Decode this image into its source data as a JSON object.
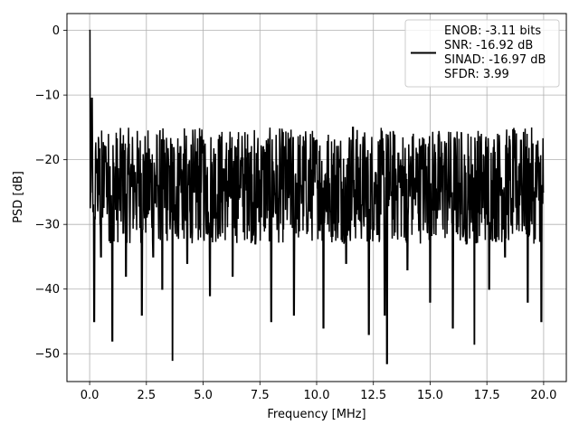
{
  "chart_data": {
    "type": "line",
    "xlabel": "Frequency [MHz]",
    "ylabel": "PSD [dB]",
    "xlim": [
      -1.0,
      21.0
    ],
    "ylim": [
      -54.3,
      2.6
    ],
    "xticks": [
      0.0,
      2.5,
      5.0,
      7.5,
      10.0,
      12.5,
      15.0,
      17.5,
      20.0
    ],
    "xtick_labels": [
      "0.0",
      "2.5",
      "5.0",
      "7.5",
      "10.0",
      "12.5",
      "15.0",
      "17.5",
      "20.0"
    ],
    "yticks": [
      0,
      -10,
      -20,
      -30,
      -40,
      -50
    ],
    "ytick_labels": [
      "0",
      "−10",
      "−20",
      "−30",
      "−40",
      "−50"
    ],
    "grid": true,
    "legend_position": "upper right",
    "legend_lines": [
      "ENOB: -3.11 bits",
      "SNR: -16.92 dB",
      "SINAD: -16.97 dB",
      "SFDR: 3.99"
    ],
    "series": [
      {
        "color": "#000000",
        "description": "noisy PSD trace, dense black fill between approx -15 and -33 dB with spikes",
        "x": [
          0.0,
          0.05,
          0.1,
          0.15,
          0.2,
          0.3,
          0.5,
          0.7,
          1.0,
          1.3,
          1.6,
          2.0,
          2.3,
          2.5,
          2.8,
          3.0,
          3.2,
          3.5,
          3.65,
          3.8,
          4.0,
          4.3,
          4.6,
          5.0,
          5.3,
          5.6,
          6.0,
          6.3,
          6.6,
          7.0,
          7.3,
          7.6,
          8.0,
          8.3,
          8.6,
          9.0,
          9.3,
          9.6,
          10.0,
          10.3,
          10.6,
          11.0,
          11.3,
          11.6,
          12.0,
          12.3,
          12.6,
          13.0,
          13.1,
          13.3,
          13.6,
          14.0,
          14.3,
          14.6,
          15.0,
          15.3,
          15.6,
          16.0,
          16.3,
          16.6,
          16.95,
          17.3,
          17.6,
          18.0,
          18.3,
          18.6,
          19.0,
          19.3,
          19.6,
          19.9,
          20.0
        ],
        "y": [
          0.0,
          -25.0,
          -10.5,
          -28.0,
          -45.0,
          -22.0,
          -35.0,
          -18.0,
          -48.0,
          -26.0,
          -38.0,
          -22.0,
          -44.0,
          -19.0,
          -35.0,
          -24.0,
          -40.0,
          -21.0,
          -51.0,
          -27.0,
          -18.0,
          -36.0,
          -25.0,
          -17.0,
          -41.0,
          -29.0,
          -20.0,
          -38.0,
          -24.0,
          -19.0,
          -33.0,
          -21.0,
          -45.0,
          -26.0,
          -18.0,
          -44.0,
          -24.0,
          -31.0,
          -17.0,
          -46.0,
          -28.0,
          -20.0,
          -36.0,
          -15.0,
          -27.0,
          -47.0,
          -22.0,
          -44.0,
          -51.5,
          -25.0,
          -19.0,
          -37.0,
          -26.0,
          -18.0,
          -42.0,
          -29.0,
          -21.0,
          -46.0,
          -24.0,
          -33.0,
          -48.5,
          -22.0,
          -40.0,
          -19.0,
          -35.0,
          -26.0,
          -17.0,
          -42.0,
          -25.0,
          -45.0,
          -25.0
        ]
      }
    ]
  }
}
